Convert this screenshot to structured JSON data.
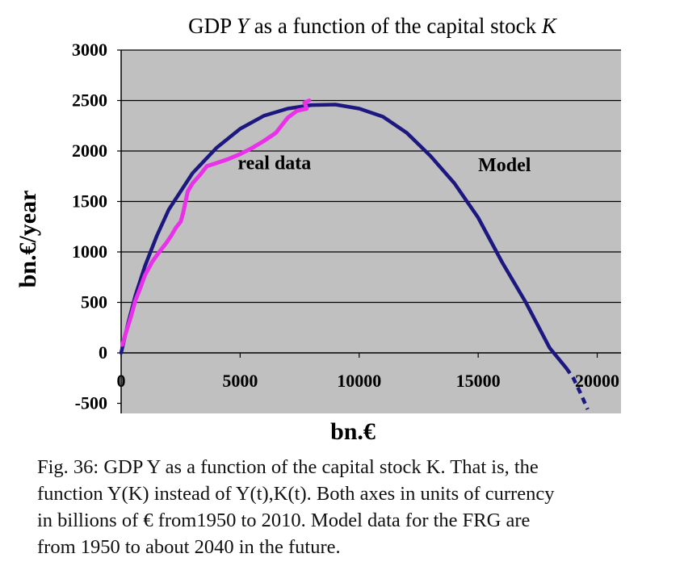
{
  "chart_data": {
    "type": "line",
    "title": "GDP Y as a function of the capital stock K",
    "title_parts": [
      "GDP ",
      "Y",
      " as a function of the capital stock ",
      "K"
    ],
    "xlabel": "bn.€",
    "ylabel": "bn.€/year",
    "xlim": [
      0,
      21000
    ],
    "ylim": [
      -600,
      3000
    ],
    "xticks": [
      0,
      5000,
      10000,
      15000,
      20000
    ],
    "yticks": [
      3000,
      2500,
      2000,
      1500,
      1000,
      500,
      0,
      -500
    ],
    "grid": "horizontal",
    "annotations": [
      {
        "text": "real data",
        "at": [
          4900,
          1820
        ]
      },
      {
        "text": "Model",
        "at": [
          15000,
          1800
        ]
      }
    ],
    "series": [
      {
        "name": "Model",
        "color": "#1c1880",
        "style": "solid",
        "x": [
          0,
          300,
          600,
          1000,
          1500,
          2000,
          3000,
          4000,
          5000,
          6000,
          7000,
          8000,
          9000,
          10000,
          11000,
          12000,
          13000,
          14000,
          15000,
          16000,
          17000,
          18000,
          18700
        ],
        "y": [
          0,
          300,
          570,
          860,
          1160,
          1420,
          1780,
          2030,
          2220,
          2350,
          2420,
          2455,
          2460,
          2420,
          2340,
          2180,
          1950,
          1680,
          1340,
          900,
          500,
          50,
          -150
        ]
      },
      {
        "name": "Model (forecast)",
        "color": "#1c1880",
        "style": "dashed",
        "x": [
          18700,
          19000,
          19300,
          19600
        ],
        "y": [
          -150,
          -250,
          -400,
          -560
        ]
      },
      {
        "name": "real data",
        "color": "#e831e8",
        "style": "solid",
        "x": [
          50,
          200,
          400,
          600,
          800,
          1000,
          1300,
          1600,
          1900,
          2100,
          2300,
          2500,
          2600,
          2800,
          3000,
          3300,
          3600,
          4000,
          4500,
          5000,
          5500,
          6000,
          6500,
          7000,
          7400,
          7800,
          7700,
          7900
        ],
        "y": [
          80,
          200,
          350,
          520,
          640,
          770,
          900,
          1000,
          1090,
          1160,
          1240,
          1300,
          1380,
          1600,
          1680,
          1760,
          1850,
          1880,
          1920,
          1970,
          2030,
          2100,
          2180,
          2330,
          2400,
          2420,
          2480,
          2500
        ]
      }
    ]
  },
  "caption": {
    "line1": "Fig. 36: GDP Y as a function of the capital stock K. That is, the",
    "line2": "function Y(K) instead of Y(t),K(t). Both axes in units of currency",
    "line3": "in billions of  € from1950 to 2010. Model data for the FRG  are",
    "line4": "from 1950 to about 2040 in the future."
  }
}
